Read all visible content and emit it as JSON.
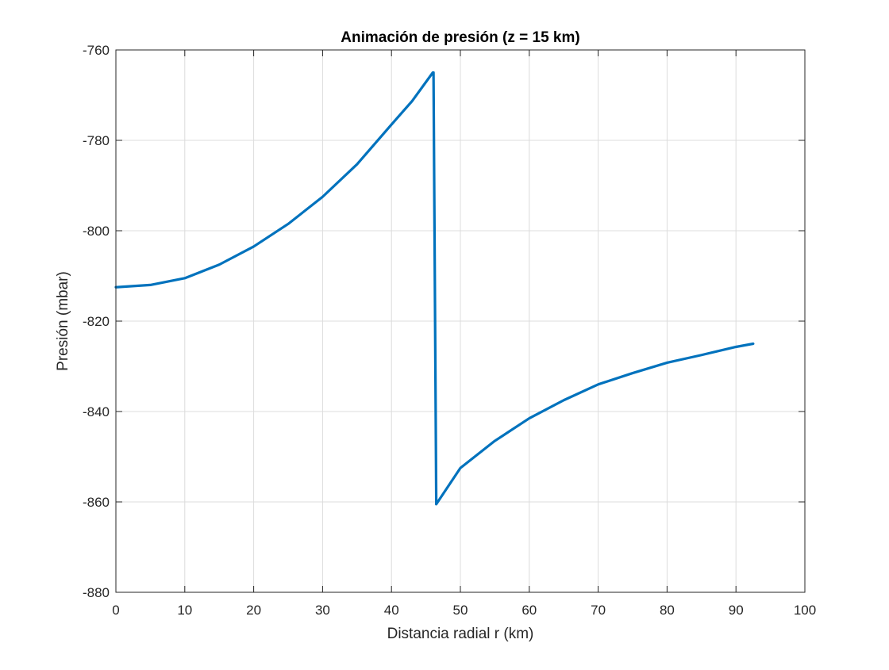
{
  "chart_data": {
    "type": "line",
    "title": "Animación de presión (z = 15 km)",
    "xlabel": "Distancia radial r (km)",
    "ylabel": "Presión (mbar)",
    "xlim": [
      0,
      100
    ],
    "ylim": [
      -880,
      -760
    ],
    "xticks": [
      0,
      10,
      20,
      30,
      40,
      50,
      60,
      70,
      80,
      90,
      100
    ],
    "yticks": [
      -880,
      -860,
      -840,
      -820,
      -800,
      -780,
      -760
    ],
    "xtick_labels": [
      "0",
      "10",
      "20",
      "30",
      "40",
      "50",
      "60",
      "70",
      "80",
      "90",
      "100"
    ],
    "ytick_labels": [
      "-880",
      "-860",
      "-840",
      "-820",
      "-800",
      "-780",
      "-760"
    ],
    "grid": true,
    "line_color": "#0072BD",
    "series": [
      {
        "x": [
          0,
          5,
          10,
          15,
          20,
          25,
          30,
          35,
          40,
          43,
          46,
          46.1,
          46.5,
          50,
          55,
          60,
          65,
          70,
          75,
          80,
          85,
          90,
          92.5
        ],
        "y": [
          -812.5,
          -812,
          -810.5,
          -807.5,
          -803.5,
          -798.5,
          -792.5,
          -785.3,
          -776.5,
          -771.3,
          -765,
          -765,
          -860.5,
          -852.5,
          -846.5,
          -841.5,
          -837.5,
          -834,
          -831.5,
          -829.2,
          -827.5,
          -825.7,
          -825
        ]
      }
    ]
  }
}
